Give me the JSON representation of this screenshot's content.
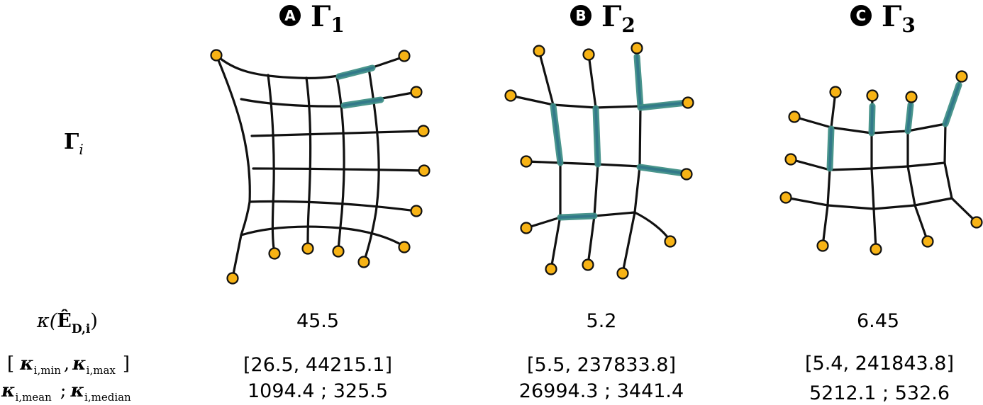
{
  "panels": [
    {
      "badge": "A",
      "title": "Γ",
      "subscript": "1",
      "kappa": "45.5",
      "range": "[26.5, 44215.1]",
      "mean_median": "1094.4 ; 325.5"
    },
    {
      "badge": "B",
      "title": "Γ",
      "subscript": "2",
      "kappa": "5.2",
      "range": "[5.5, 237833.8]",
      "mean_median": "26994.3 ; 3441.4"
    },
    {
      "badge": "C",
      "title": "Γ",
      "subscript": "3",
      "kappa": "6.45",
      "range": "[5.4, 241843.8]",
      "mean_median": "5212.1 ; 532.6"
    }
  ],
  "row_labels": {
    "gamma": "Γ",
    "gamma_sub": "i",
    "kappa_prefix": "κ(",
    "kappa_E": "Ê",
    "kappa_sub": "D,i",
    "kappa_suffix": ")",
    "range_open": "[",
    "range_k1": "κ",
    "range_sub1": "i,min",
    "range_comma": ",",
    "range_k2": "κ",
    "range_sub2": "i,max",
    "range_close": "]",
    "mean_k": "κ",
    "mean_sub": "i,mean",
    "mean_sep": ";",
    "median_k": "κ",
    "median_sub": "i,median"
  },
  "colors": {
    "node_fill": "#f7b315",
    "edge": "#111111",
    "highlight": "#3f8f86"
  }
}
